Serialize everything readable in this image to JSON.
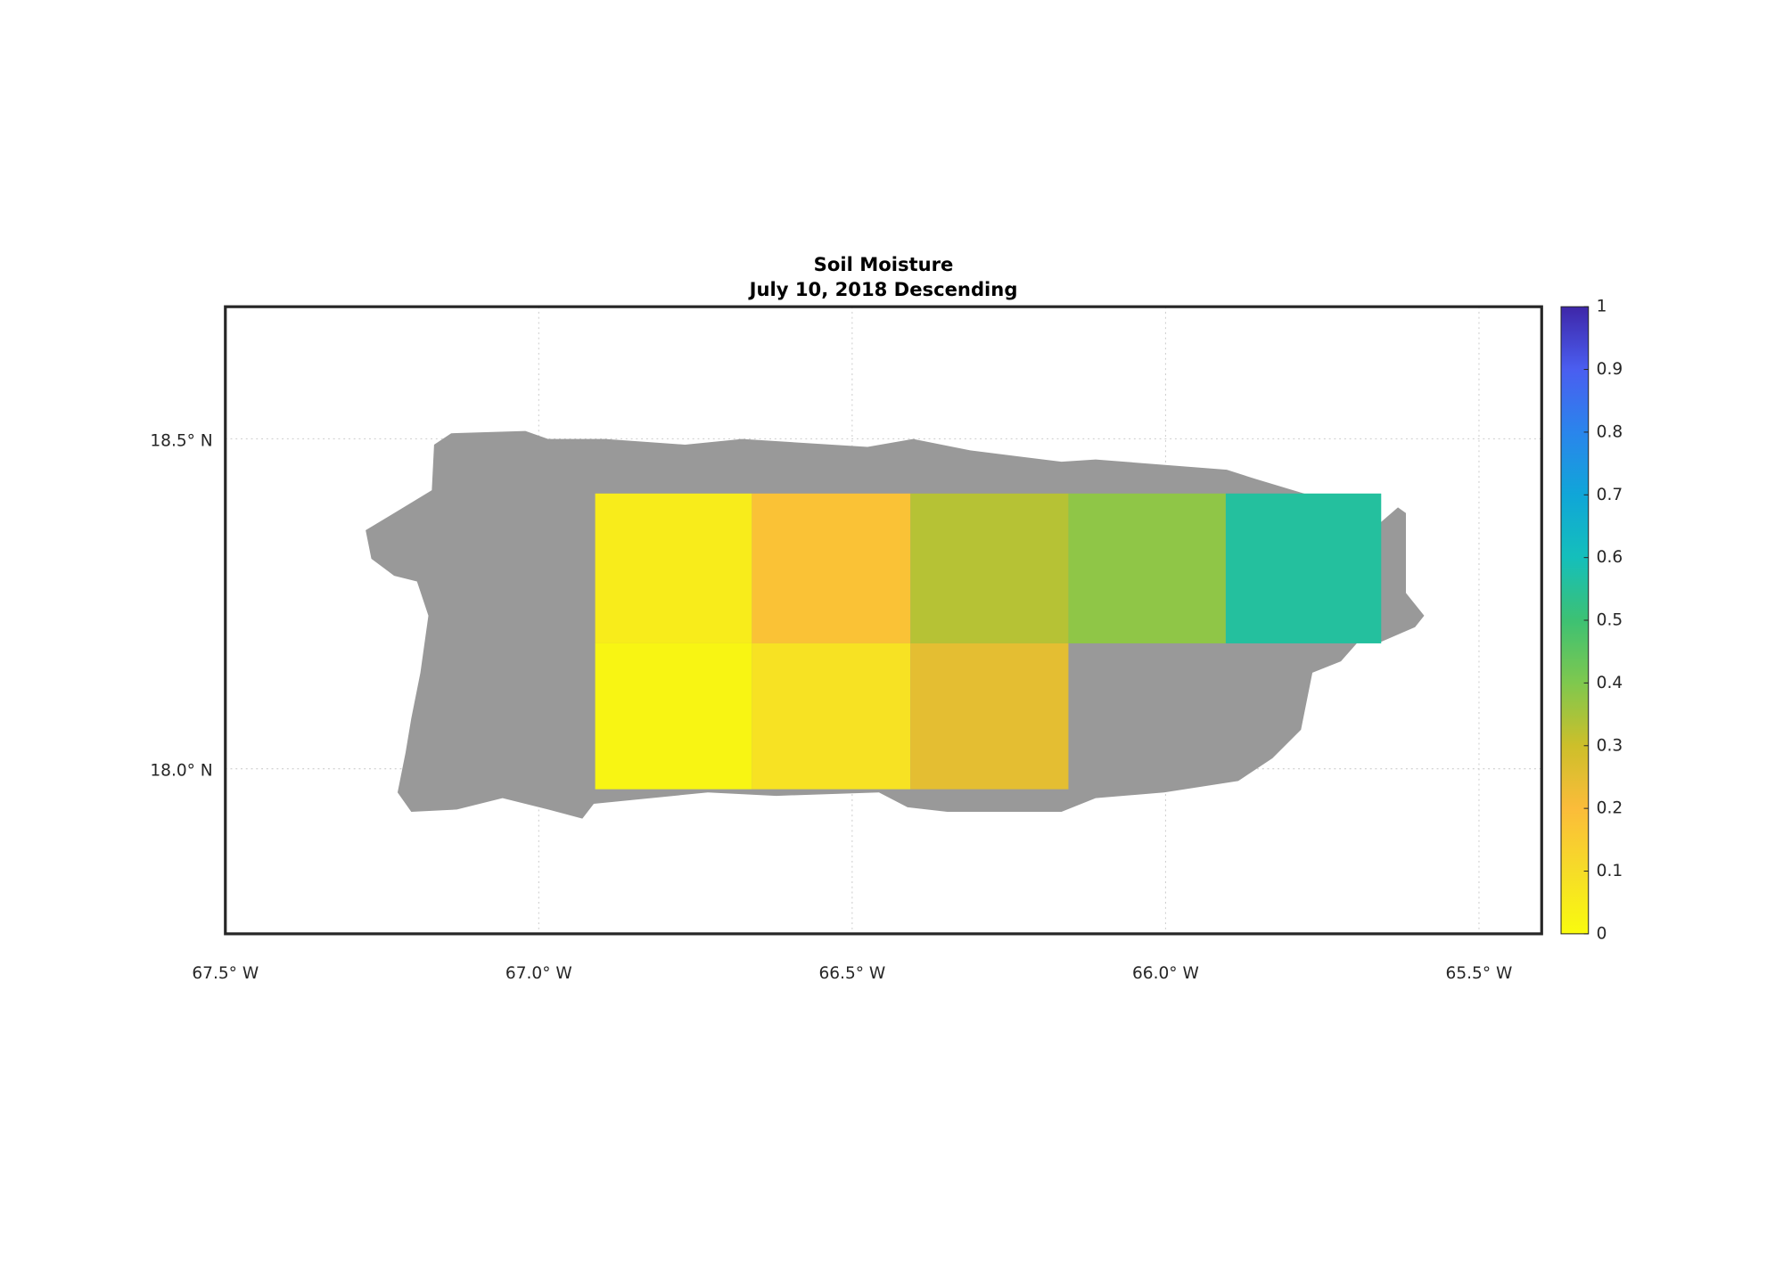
{
  "chart_data": {
    "type": "heatmap",
    "title": "Soil Moisture",
    "subtitle": "July 10, 2018 Descending",
    "xlim": [
      -67.5,
      -65.4
    ],
    "ylim": [
      17.75,
      18.7
    ],
    "xticks": [
      {
        "value": -67.5,
        "label": "67.5° W"
      },
      {
        "value": -67.0,
        "label": "67.0° W"
      },
      {
        "value": -66.5,
        "label": "66.5° W"
      },
      {
        "value": -66.0,
        "label": "66.0° W"
      },
      {
        "value": -65.5,
        "label": "65.5° W"
      }
    ],
    "yticks": [
      {
        "value": 18.0,
        "label": "18.0° N"
      },
      {
        "value": 18.5,
        "label": "18.5° N"
      }
    ],
    "grid": true,
    "cells": [
      {
        "lon": [
          -66.91,
          -66.66
        ],
        "lat": [
          18.19,
          18.417
        ],
        "value": 0.05
      },
      {
        "lon": [
          -66.66,
          -66.407
        ],
        "lat": [
          18.19,
          18.417
        ],
        "value": 0.18
      },
      {
        "lon": [
          -66.407,
          -66.155
        ],
        "lat": [
          18.19,
          18.417
        ],
        "value": 0.33
      },
      {
        "lon": [
          -66.155,
          -65.904
        ],
        "lat": [
          18.19,
          18.417
        ],
        "value": 0.38
      },
      {
        "lon": [
          -65.904,
          -65.656
        ],
        "lat": [
          18.19,
          18.417
        ],
        "value": 0.56
      },
      {
        "lon": [
          -66.91,
          -66.66
        ],
        "lat": [
          17.969,
          18.19
        ],
        "value": 0.02
      },
      {
        "lon": [
          -66.66,
          -66.407
        ],
        "lat": [
          17.969,
          18.19
        ],
        "value": 0.08
      },
      {
        "lon": [
          -66.407,
          -66.155
        ],
        "lat": [
          17.969,
          18.19
        ],
        "value": 0.25
      }
    ],
    "clim": [
      0,
      1
    ],
    "colormap": [
      "#f9fb0e",
      "#f6dc28",
      "#fbbc3a",
      "#cdbf2a",
      "#7fc84e",
      "#3dc173",
      "#14bfbb",
      "#10a6d8",
      "#2a85ec",
      "#4a5ef0",
      "#3e26a8"
    ],
    "cticks": [
      0,
      0.1,
      0.2,
      0.3,
      0.4,
      0.5,
      0.6,
      0.7,
      0.8,
      0.9,
      1
    ]
  }
}
